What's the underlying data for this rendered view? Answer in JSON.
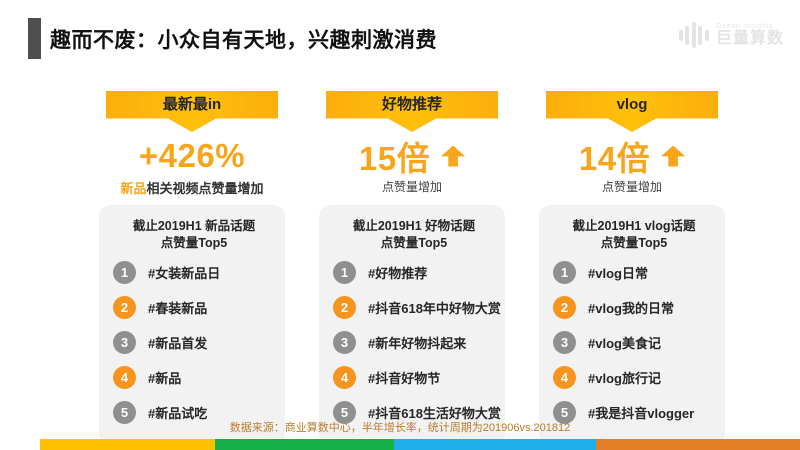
{
  "slide": {
    "title": "趣而不废：小众自有天地，兴趣刺激消费",
    "logo_en": "Ocean Insights",
    "logo_cn": "巨量算数",
    "source": "数据来源：商业算数中心，半年增长率，统计周期为201906vs.201812"
  },
  "colors": {
    "ribbon_yellow": "#FFB908",
    "accent_orange": "#F9A51A",
    "rank_gray": "#8F8F8F",
    "rank_orange": "#F7941E",
    "title_marker_gray": "#4F4F4F",
    "box_background": "#F2F2F2",
    "source_text": "#BA7D2E",
    "bottom_bar_segments": [
      "#FFC000",
      "#14AF46",
      "#1FAEE9",
      "#E67E28"
    ]
  },
  "columns": [
    {
      "ribbon": "最新最in",
      "stat": "+426%",
      "caption_highlight": "新品",
      "caption": "相关视频点赞量增加",
      "box_title_line1": "截止2019H1 新品话题",
      "box_title_line2": "点赞量Top5",
      "items": [
        {
          "rank": "1",
          "label": "#女装新品日"
        },
        {
          "rank": "2",
          "label": "#春装新品"
        },
        {
          "rank": "3",
          "label": "#新品首发"
        },
        {
          "rank": "4",
          "label": "#新品"
        },
        {
          "rank": "5",
          "label": "#新品试吃"
        }
      ]
    },
    {
      "ribbon": "好物推荐",
      "stat": "15倍",
      "caption": "点赞量增加",
      "box_title_line1": "截止2019H1 好物话题",
      "box_title_line2": "点赞量Top5",
      "items": [
        {
          "rank": "1",
          "label": "#好物推荐"
        },
        {
          "rank": "2",
          "label": "#抖音618年中好物大赏"
        },
        {
          "rank": "3",
          "label": "#新年好物抖起来"
        },
        {
          "rank": "4",
          "label": "#抖音好物节"
        },
        {
          "rank": "5",
          "label": "#抖音618生活好物大赏"
        }
      ]
    },
    {
      "ribbon": "vlog",
      "stat": "14倍",
      "caption": "点赞量增加",
      "box_title_line1": "截止2019H1 vlog话题",
      "box_title_line2": "点赞量Top5",
      "items": [
        {
          "rank": "1",
          "label": "#vlog日常"
        },
        {
          "rank": "2",
          "label": "#vlog我的日常"
        },
        {
          "rank": "3",
          "label": "#vlog美食记"
        },
        {
          "rank": "4",
          "label": "#vlog旅行记"
        },
        {
          "rank": "5",
          "label": "#我是抖音vlogger"
        }
      ]
    }
  ]
}
